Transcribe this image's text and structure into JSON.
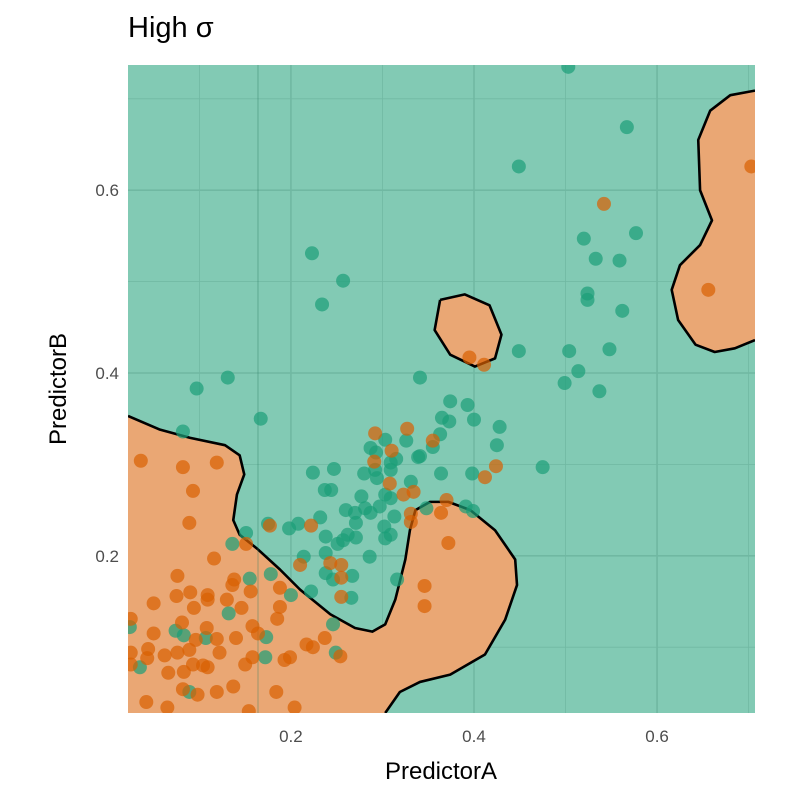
{
  "chart_data": {
    "type": "scatter",
    "title": "High σ",
    "xlabel": "PredictorA",
    "ylabel": "PredictorB",
    "xlim": [
      0.022,
      0.707
    ],
    "ylim": [
      0.028,
      0.737
    ],
    "x_ticks": [
      0.2,
      0.4,
      0.6
    ],
    "y_ticks": [
      0.2,
      0.4,
      0.6
    ],
    "x_tick_labels": [
      "0.2",
      "0.4",
      "0.6"
    ],
    "y_tick_labels": [
      "0.2",
      "0.4",
      "0.6"
    ],
    "grid": true,
    "legend": "none",
    "colors": {
      "class_teal": "#1B9E77",
      "class_orange": "#D95F02",
      "boundary": "#000000"
    },
    "background_region_class": "teal",
    "decision_regions": [
      {
        "class": "orange",
        "points": [
          [
            0.022,
            0.353
          ],
          [
            0.057,
            0.338
          ],
          [
            0.09,
            0.329
          ],
          [
            0.128,
            0.321
          ],
          [
            0.144,
            0.31
          ],
          [
            0.149,
            0.289
          ],
          [
            0.141,
            0.267
          ],
          [
            0.137,
            0.239
          ],
          [
            0.144,
            0.223
          ],
          [
            0.164,
            0.207
          ],
          [
            0.188,
            0.185
          ],
          [
            0.21,
            0.163
          ],
          [
            0.243,
            0.136
          ],
          [
            0.27,
            0.121
          ],
          [
            0.289,
            0.117
          ],
          [
            0.303,
            0.125
          ],
          [
            0.314,
            0.152
          ],
          [
            0.325,
            0.196
          ],
          [
            0.33,
            0.228
          ],
          [
            0.336,
            0.25
          ],
          [
            0.352,
            0.259
          ],
          [
            0.372,
            0.259
          ],
          [
            0.396,
            0.25
          ],
          [
            0.423,
            0.228
          ],
          [
            0.445,
            0.196
          ],
          [
            0.447,
            0.168
          ],
          [
            0.434,
            0.13
          ],
          [
            0.412,
            0.092
          ],
          [
            0.374,
            0.07
          ],
          [
            0.341,
            0.062
          ],
          [
            0.319,
            0.051
          ],
          [
            0.303,
            0.028
          ]
        ],
        "closure": [
          [
            0.022,
            0.028
          ]
        ]
      },
      {
        "class": "orange",
        "points": [
          [
            0.363,
            0.48
          ],
          [
            0.39,
            0.486
          ],
          [
            0.417,
            0.474
          ],
          [
            0.43,
            0.442
          ],
          [
            0.423,
            0.416
          ],
          [
            0.401,
            0.407
          ],
          [
            0.374,
            0.42
          ],
          [
            0.357,
            0.447
          ],
          [
            0.363,
            0.48
          ]
        ],
        "closure": []
      },
      {
        "class": "orange",
        "points": [
          [
            0.707,
            0.709
          ],
          [
            0.68,
            0.704
          ],
          [
            0.658,
            0.687
          ],
          [
            0.645,
            0.655
          ],
          [
            0.647,
            0.6
          ],
          [
            0.66,
            0.567
          ],
          [
            0.647,
            0.54
          ],
          [
            0.625,
            0.518
          ],
          [
            0.616,
            0.491
          ],
          [
            0.623,
            0.458
          ],
          [
            0.642,
            0.431
          ],
          [
            0.663,
            0.423
          ],
          [
            0.685,
            0.427
          ],
          [
            0.707,
            0.436
          ]
        ],
        "closure": []
      }
    ],
    "series": [
      {
        "class": "teal",
        "points": [
          [
            0.503,
            0.735
          ],
          [
            0.567,
            0.669
          ],
          [
            0.449,
            0.626
          ],
          [
            0.577,
            0.553
          ],
          [
            0.52,
            0.547
          ],
          [
            0.533,
            0.525
          ],
          [
            0.559,
            0.523
          ],
          [
            0.524,
            0.487
          ],
          [
            0.524,
            0.48
          ],
          [
            0.562,
            0.468
          ],
          [
            0.548,
            0.426
          ],
          [
            0.504,
            0.424
          ],
          [
            0.449,
            0.424
          ],
          [
            0.514,
            0.402
          ],
          [
            0.499,
            0.389
          ],
          [
            0.537,
            0.38
          ],
          [
            0.475,
            0.297
          ],
          [
            0.223,
            0.531
          ],
          [
            0.257,
            0.501
          ],
          [
            0.234,
            0.475
          ],
          [
            0.097,
            0.383
          ],
          [
            0.131,
            0.395
          ],
          [
            0.341,
            0.395
          ],
          [
            0.167,
            0.35
          ],
          [
            0.082,
            0.336
          ],
          [
            0.374,
            0.369
          ],
          [
            0.393,
            0.365
          ],
          [
            0.365,
            0.351
          ],
          [
            0.373,
            0.347
          ],
          [
            0.4,
            0.349
          ],
          [
            0.428,
            0.341
          ],
          [
            0.425,
            0.321
          ],
          [
            0.363,
            0.333
          ],
          [
            0.355,
            0.319
          ],
          [
            0.341,
            0.309
          ],
          [
            0.339,
            0.308
          ],
          [
            0.326,
            0.326
          ],
          [
            0.303,
            0.327
          ],
          [
            0.287,
            0.318
          ],
          [
            0.293,
            0.313
          ],
          [
            0.315,
            0.306
          ],
          [
            0.309,
            0.302
          ],
          [
            0.292,
            0.294
          ],
          [
            0.309,
            0.294
          ],
          [
            0.28,
            0.29
          ],
          [
            0.294,
            0.285
          ],
          [
            0.364,
            0.29
          ],
          [
            0.398,
            0.29
          ],
          [
            0.224,
            0.291
          ],
          [
            0.247,
            0.295
          ],
          [
            0.237,
            0.272
          ],
          [
            0.244,
            0.272
          ],
          [
            0.331,
            0.281
          ],
          [
            0.277,
            0.265
          ],
          [
            0.303,
            0.267
          ],
          [
            0.309,
            0.263
          ],
          [
            0.26,
            0.25
          ],
          [
            0.281,
            0.252
          ],
          [
            0.287,
            0.247
          ],
          [
            0.297,
            0.254
          ],
          [
            0.27,
            0.247
          ],
          [
            0.313,
            0.243
          ],
          [
            0.348,
            0.252
          ],
          [
            0.391,
            0.254
          ],
          [
            0.399,
            0.249
          ],
          [
            0.271,
            0.236
          ],
          [
            0.302,
            0.232
          ],
          [
            0.309,
            0.223
          ],
          [
            0.303,
            0.219
          ],
          [
            0.262,
            0.223
          ],
          [
            0.257,
            0.217
          ],
          [
            0.251,
            0.213
          ],
          [
            0.238,
            0.221
          ],
          [
            0.271,
            0.22
          ],
          [
            0.286,
            0.199
          ],
          [
            0.238,
            0.203
          ],
          [
            0.214,
            0.199
          ],
          [
            0.232,
            0.242
          ],
          [
            0.208,
            0.235
          ],
          [
            0.198,
            0.23
          ],
          [
            0.175,
            0.235
          ],
          [
            0.151,
            0.225
          ],
          [
            0.136,
            0.213
          ],
          [
            0.178,
            0.18
          ],
          [
            0.155,
            0.175
          ],
          [
            0.2,
            0.157
          ],
          [
            0.222,
            0.161
          ],
          [
            0.238,
            0.181
          ],
          [
            0.246,
            0.174
          ],
          [
            0.267,
            0.178
          ],
          [
            0.316,
            0.174
          ],
          [
            0.266,
            0.154
          ],
          [
            0.132,
            0.137
          ],
          [
            0.246,
            0.125
          ],
          [
            0.249,
            0.094
          ],
          [
            0.173,
            0.111
          ],
          [
            0.172,
            0.089
          ],
          [
            0.107,
            0.11
          ],
          [
            0.074,
            0.118
          ],
          [
            0.083,
            0.113
          ],
          [
            0.024,
            0.122
          ],
          [
            0.035,
            0.078
          ],
          [
            0.089,
            0.051
          ]
        ]
      },
      {
        "class": "orange",
        "points": [
          [
            0.292,
            0.334
          ],
          [
            0.327,
            0.339
          ],
          [
            0.355,
            0.326
          ],
          [
            0.31,
            0.315
          ],
          [
            0.291,
            0.303
          ],
          [
            0.424,
            0.298
          ],
          [
            0.412,
            0.286
          ],
          [
            0.308,
            0.279
          ],
          [
            0.323,
            0.267
          ],
          [
            0.334,
            0.27
          ],
          [
            0.37,
            0.261
          ],
          [
            0.331,
            0.246
          ],
          [
            0.331,
            0.237
          ],
          [
            0.364,
            0.247
          ],
          [
            0.372,
            0.214
          ],
          [
            0.177,
            0.233
          ],
          [
            0.222,
            0.233
          ],
          [
            0.151,
            0.213
          ],
          [
            0.21,
            0.19
          ],
          [
            0.243,
            0.192
          ],
          [
            0.255,
            0.19
          ],
          [
            0.255,
            0.176
          ],
          [
            0.255,
            0.155
          ],
          [
            0.346,
            0.167
          ],
          [
            0.346,
            0.145
          ],
          [
            0.036,
            0.304
          ],
          [
            0.082,
            0.297
          ],
          [
            0.119,
            0.302
          ],
          [
            0.093,
            0.271
          ],
          [
            0.089,
            0.236
          ],
          [
            0.116,
            0.197
          ],
          [
            0.076,
            0.178
          ],
          [
            0.138,
            0.174
          ],
          [
            0.136,
            0.168
          ],
          [
            0.156,
            0.161
          ],
          [
            0.188,
            0.165
          ],
          [
            0.075,
            0.156
          ],
          [
            0.09,
            0.16
          ],
          [
            0.109,
            0.157
          ],
          [
            0.109,
            0.152
          ],
          [
            0.13,
            0.152
          ],
          [
            0.146,
            0.143
          ],
          [
            0.188,
            0.144
          ],
          [
            0.05,
            0.148
          ],
          [
            0.094,
            0.143
          ],
          [
            0.185,
            0.131
          ],
          [
            0.081,
            0.127
          ],
          [
            0.025,
            0.131
          ],
          [
            0.108,
            0.121
          ],
          [
            0.05,
            0.115
          ],
          [
            0.158,
            0.123
          ],
          [
            0.164,
            0.115
          ],
          [
            0.119,
            0.109
          ],
          [
            0.14,
            0.11
          ],
          [
            0.096,
            0.108
          ],
          [
            0.044,
            0.098
          ],
          [
            0.076,
            0.094
          ],
          [
            0.062,
            0.091
          ],
          [
            0.089,
            0.097
          ],
          [
            0.122,
            0.094
          ],
          [
            0.025,
            0.094
          ],
          [
            0.043,
            0.088
          ],
          [
            0.237,
            0.11
          ],
          [
            0.217,
            0.103
          ],
          [
            0.224,
            0.1
          ],
          [
            0.254,
            0.09
          ],
          [
            0.193,
            0.086
          ],
          [
            0.199,
            0.089
          ],
          [
            0.15,
            0.081
          ],
          [
            0.158,
            0.089
          ],
          [
            0.093,
            0.081
          ],
          [
            0.104,
            0.08
          ],
          [
            0.109,
            0.078
          ],
          [
            0.025,
            0.081
          ],
          [
            0.066,
            0.072
          ],
          [
            0.083,
            0.073
          ],
          [
            0.137,
            0.057
          ],
          [
            0.119,
            0.051
          ],
          [
            0.082,
            0.054
          ],
          [
            0.098,
            0.048
          ],
          [
            0.184,
            0.051
          ],
          [
            0.042,
            0.04
          ],
          [
            0.065,
            0.034
          ],
          [
            0.204,
            0.034
          ],
          [
            0.154,
            0.03
          ],
          [
            0.542,
            0.585
          ],
          [
            0.656,
            0.491
          ],
          [
            0.703,
            0.626
          ],
          [
            0.395,
            0.417
          ],
          [
            0.411,
            0.409
          ]
        ]
      }
    ]
  }
}
